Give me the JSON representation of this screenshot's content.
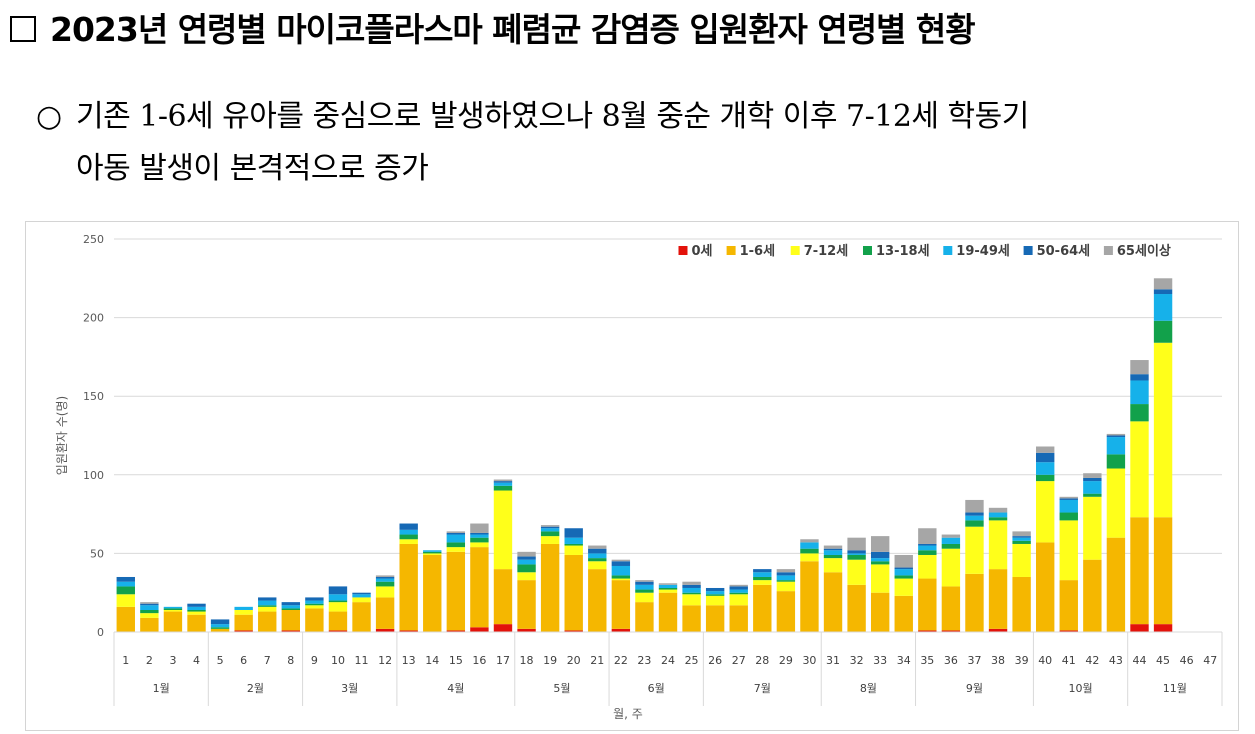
{
  "title": {
    "text": "2023년 연령별 마이코플라스마 폐렴균 감염증 입원환자 연령별 현황"
  },
  "bullet": {
    "symbol": "○",
    "line1": "기존 1-6세 유아를 중심으로 발생하였으나 8월 중순 개학 이후 7-12세 학동기",
    "line2": "아동 발생이 본격적으로 증가"
  },
  "colors": {
    "0세": "#e3120b",
    "1-6세": "#f5b700",
    "7-12세": "#ffff1a",
    "13-18세": "#12a14b",
    "19-49세": "#16b1ea",
    "50-64세": "#1669b5",
    "65세이상": "#a6a6a6"
  },
  "chart_data": {
    "type": "bar",
    "stacked": true,
    "title": "",
    "xlabel": "월, 주",
    "ylabel": "입원환자 수(명)",
    "ylim": [
      0,
      250
    ],
    "yticks": [
      0,
      50,
      100,
      150,
      200,
      250
    ],
    "grid": true,
    "legend_position": "top-right",
    "categories": [
      "1",
      "2",
      "3",
      "4",
      "5",
      "6",
      "7",
      "8",
      "9",
      "10",
      "11",
      "12",
      "13",
      "14",
      "15",
      "16",
      "17",
      "18",
      "19",
      "20",
      "21",
      "22",
      "23",
      "24",
      "25",
      "26",
      "27",
      "28",
      "29",
      "30",
      "31",
      "32",
      "33",
      "34",
      "35",
      "36",
      "37",
      "38",
      "39",
      "40",
      "41",
      "42",
      "43",
      "44",
      "45",
      "46",
      "47"
    ],
    "months": [
      {
        "label": "1월",
        "weeks": 4
      },
      {
        "label": "2월",
        "weeks": 4
      },
      {
        "label": "3월",
        "weeks": 4
      },
      {
        "label": "4월",
        "weeks": 5
      },
      {
        "label": "5월",
        "weeks": 4
      },
      {
        "label": "6월",
        "weeks": 4
      },
      {
        "label": "7월",
        "weeks": 5
      },
      {
        "label": "8월",
        "weeks": 4
      },
      {
        "label": "9월",
        "weeks": 5
      },
      {
        "label": "10월",
        "weeks": 4
      },
      {
        "label": "11월",
        "weeks": 4
      }
    ],
    "series": [
      {
        "name": "0세",
        "values": [
          0,
          0,
          0,
          0,
          0,
          1,
          0,
          1,
          0,
          1,
          0,
          2,
          1,
          0,
          1,
          3,
          5,
          2,
          0,
          1,
          0,
          2,
          0,
          0,
          0,
          0,
          0,
          0,
          0,
          0,
          0,
          0,
          0,
          0,
          1,
          1,
          0,
          2,
          0,
          0,
          1,
          0,
          0,
          5,
          5,
          0,
          0
        ]
      },
      {
        "name": "1-6세",
        "values": [
          16,
          9,
          13,
          11,
          2,
          10,
          13,
          13,
          15,
          12,
          19,
          20,
          55,
          49,
          50,
          51,
          35,
          31,
          56,
          48,
          40,
          31,
          19,
          25,
          17,
          17,
          17,
          30,
          26,
          45,
          38,
          30,
          25,
          23,
          33,
          28,
          37,
          38,
          35,
          57,
          32,
          46,
          60,
          68,
          68,
          0,
          0
        ]
      },
      {
        "name": "7-12세",
        "values": [
          8,
          3,
          1,
          2,
          0,
          3,
          3,
          0,
          2,
          6,
          3,
          7,
          3,
          1,
          3,
          3,
          50,
          5,
          5,
          6,
          5,
          1,
          6,
          2,
          7,
          6,
          7,
          3,
          6,
          5,
          9,
          16,
          18,
          11,
          15,
          24,
          30,
          31,
          21,
          39,
          38,
          40,
          44,
          61,
          111,
          0,
          0
        ]
      },
      {
        "name": "13-18세",
        "values": [
          5,
          2,
          1,
          1,
          1,
          0,
          1,
          1,
          1,
          1,
          0,
          3,
          3,
          1,
          3,
          3,
          3,
          5,
          3,
          1,
          2,
          2,
          2,
          1,
          1,
          1,
          1,
          2,
          1,
          3,
          2,
          3,
          2,
          2,
          3,
          3,
          4,
          2,
          2,
          4,
          5,
          2,
          9,
          11,
          14,
          0,
          0
        ]
      },
      {
        "name": "19-49세",
        "values": [
          3,
          3,
          1,
          2,
          2,
          2,
          3,
          2,
          2,
          4,
          2,
          2,
          3,
          1,
          5,
          2,
          2,
          3,
          2,
          4,
          3,
          6,
          3,
          2,
          3,
          2,
          2,
          3,
          3,
          4,
          3,
          1,
          2,
          4,
          3,
          4,
          3,
          3,
          2,
          8,
          8,
          8,
          11,
          15,
          17,
          0,
          0
        ]
      },
      {
        "name": "50-64세",
        "values": [
          3,
          1,
          0,
          2,
          3,
          0,
          2,
          2,
          2,
          5,
          1,
          1,
          4,
          0,
          1,
          1,
          1,
          2,
          1,
          6,
          3,
          3,
          2,
          0,
          2,
          2,
          2,
          2,
          2,
          0,
          1,
          2,
          4,
          1,
          1,
          0,
          2,
          0,
          1,
          6,
          1,
          2,
          1,
          4,
          3,
          0,
          0
        ]
      },
      {
        "name": "65세이상",
        "values": [
          0,
          1,
          0,
          0,
          0,
          0,
          0,
          0,
          0,
          0,
          0,
          1,
          0,
          0,
          1,
          6,
          1,
          3,
          1,
          0,
          2,
          1,
          1,
          1,
          2,
          0,
          1,
          0,
          2,
          2,
          2,
          8,
          10,
          8,
          10,
          2,
          8,
          3,
          3,
          4,
          1,
          3,
          1,
          9,
          7,
          0,
          0
        ]
      }
    ]
  }
}
